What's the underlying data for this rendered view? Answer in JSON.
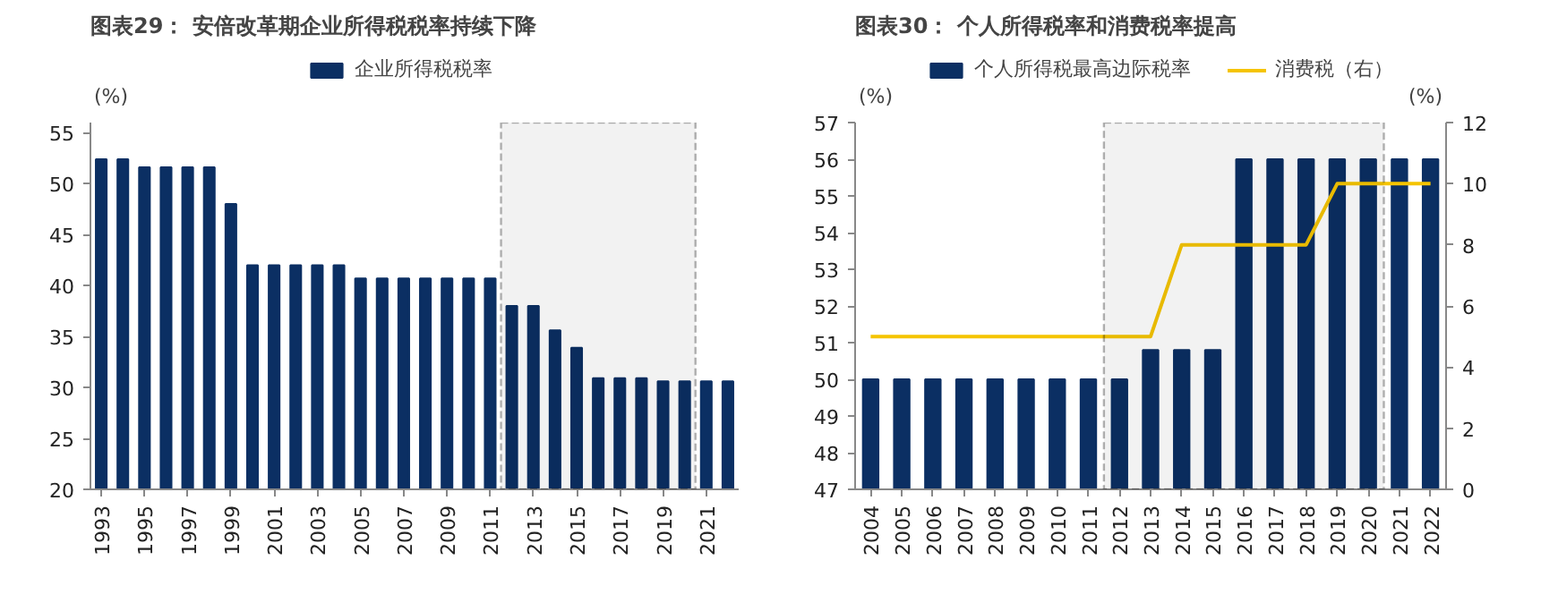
{
  "chart_data": [
    {
      "type": "bar",
      "title": "图表29：  安倍改革期企业所得税税率持续下降",
      "ylabel": "(%)",
      "x": [
        1993,
        1994,
        1995,
        1996,
        1997,
        1998,
        1999,
        2000,
        2001,
        2002,
        2003,
        2004,
        2005,
        2006,
        2007,
        2008,
        2009,
        2010,
        2011,
        2012,
        2013,
        2014,
        2015,
        2016,
        2017,
        2018,
        2019,
        2020,
        2021,
        2022
      ],
      "xlim": [
        1992.5,
        2022.5
      ],
      "xticks": [
        1993,
        1995,
        1997,
        1999,
        2001,
        2003,
        2005,
        2007,
        2009,
        2011,
        2013,
        2015,
        2017,
        2019,
        2021
      ],
      "ylim": [
        20,
        56
      ],
      "yticks": [
        20,
        25,
        30,
        35,
        40,
        45,
        50,
        55
      ],
      "series": [
        {
          "name": "企业所得税税率",
          "color": "#0b2f63",
          "values": [
            52.4,
            52.4,
            51.6,
            51.6,
            51.6,
            51.6,
            48,
            42,
            42,
            42,
            42,
            42,
            40.7,
            40.7,
            40.7,
            40.7,
            40.7,
            40.7,
            40.7,
            38,
            38,
            35.6,
            33.9,
            30.9,
            30.9,
            30.9,
            30.6,
            30.6,
            30.6,
            30.6
          ]
        }
      ],
      "bands": [
        {
          "axis": "x",
          "from": 2011.5,
          "to": 2020.5,
          "color": "#000000"
        }
      ],
      "legend": "top",
      "grid": false
    },
    {
      "type": "bar",
      "title": "图表30：  个人所得税率和消费税率提高",
      "ylabel": "(%)",
      "y2label": "(%)",
      "x": [
        2004,
        2005,
        2006,
        2007,
        2008,
        2009,
        2010,
        2011,
        2012,
        2013,
        2014,
        2015,
        2016,
        2017,
        2018,
        2019,
        2020,
        2021,
        2022
      ],
      "xlim": [
        2003.5,
        2022.5
      ],
      "xticks": [
        2004,
        2005,
        2006,
        2007,
        2008,
        2009,
        2010,
        2011,
        2012,
        2013,
        2014,
        2015,
        2016,
        2017,
        2018,
        2019,
        2020,
        2021,
        2022
      ],
      "ylim": [
        47,
        57
      ],
      "yticks": [
        47,
        48,
        49,
        50,
        51,
        52,
        53,
        54,
        55,
        56,
        57
      ],
      "y2lim": [
        0,
        12
      ],
      "y2ticks": [
        0,
        2,
        4,
        6,
        8,
        10,
        12
      ],
      "series": [
        {
          "name": "个人所得税最高边际税率",
          "color": "#0b2f63",
          "values": [
            50,
            50,
            50,
            50,
            50,
            50,
            50,
            50,
            50,
            50.8,
            50.8,
            50.8,
            56,
            56,
            56,
            56,
            56,
            56,
            56
          ]
        },
        {
          "name": "消费税（右）",
          "type": "line",
          "axis": "y2",
          "color": "#f5c400",
          "values": [
            5,
            5,
            5,
            5,
            5,
            5,
            5,
            5,
            5,
            5,
            8,
            8,
            8,
            8,
            8,
            10,
            10,
            10,
            10
          ]
        }
      ],
      "bands": [
        {
          "axis": "x",
          "from": 2011.5,
          "to": 2020.5,
          "color": "#000000"
        }
      ],
      "legend": "top",
      "grid": false
    }
  ]
}
